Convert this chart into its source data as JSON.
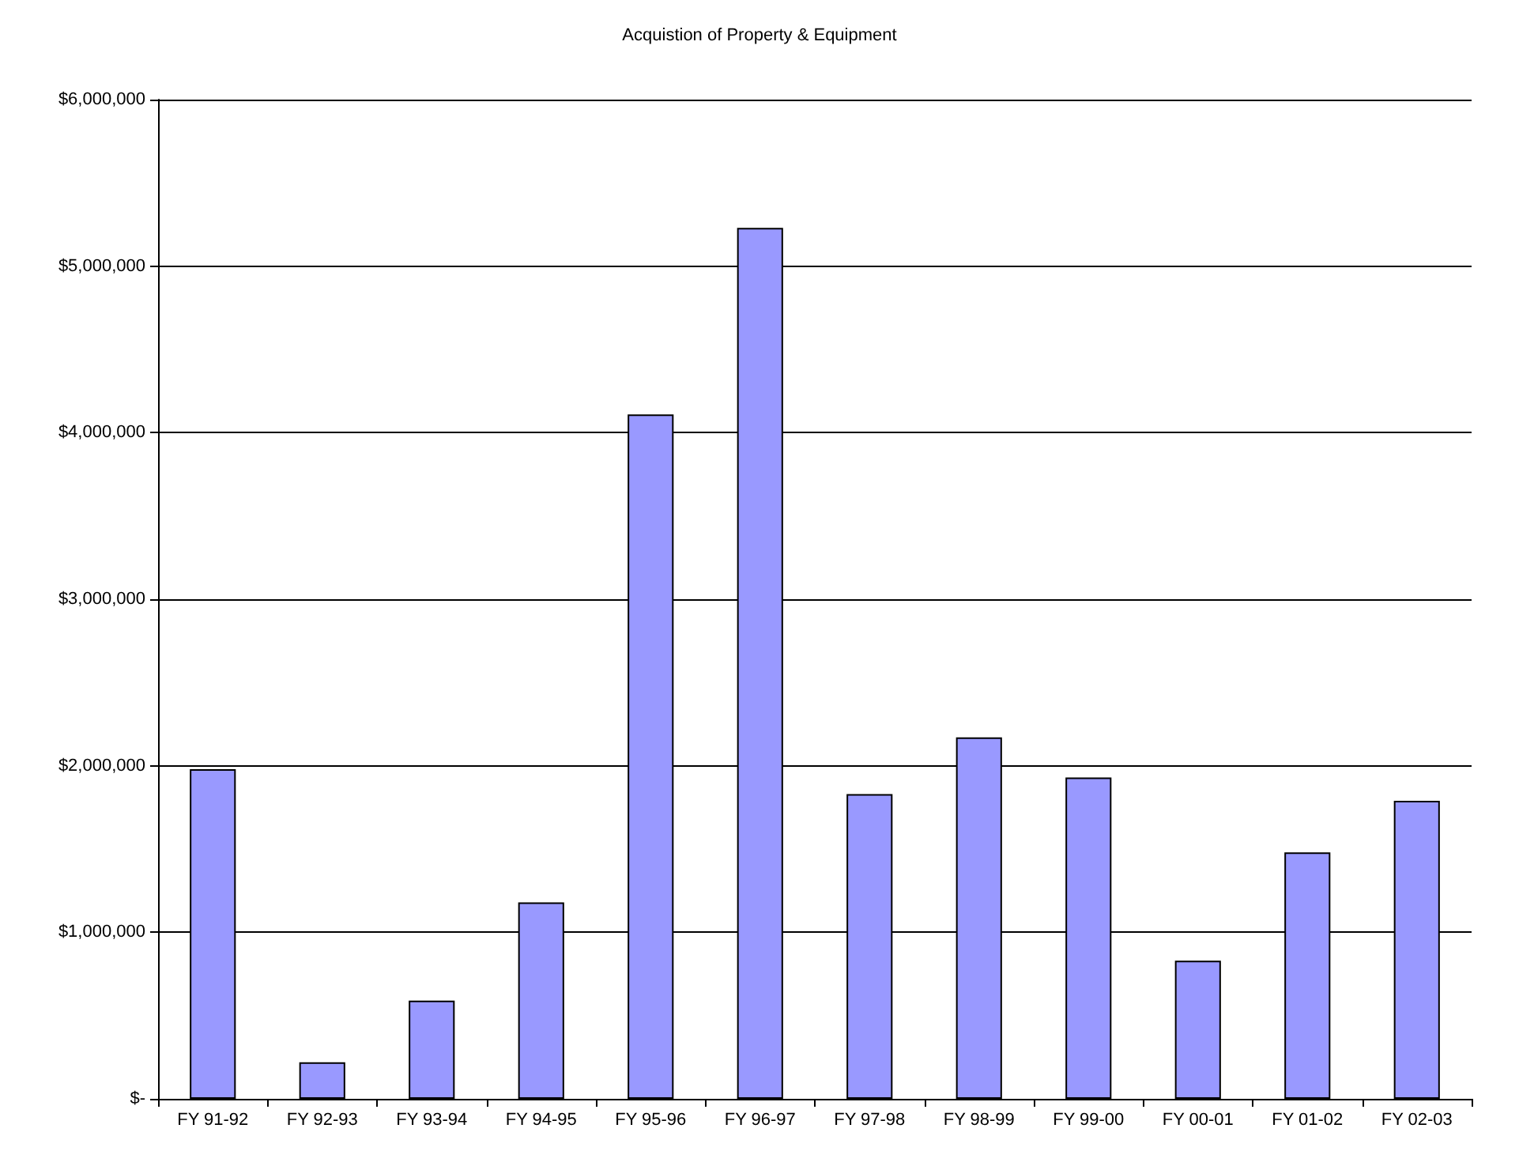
{
  "chart_data": {
    "type": "bar",
    "title": "Acquistion of Property & Equipment",
    "categories": [
      "FY 91-92",
      "FY 92-93",
      "FY 93-94",
      "FY 94-95",
      "FY 95-96",
      "FY 96-97",
      "FY 97-98",
      "FY 98-99",
      "FY 99-00",
      "FY 00-01",
      "FY 01-02",
      "FY 02-03"
    ],
    "values": [
      1980000,
      220000,
      590000,
      1180000,
      4110000,
      5230000,
      1830000,
      2170000,
      1930000,
      830000,
      1480000,
      1790000
    ],
    "color": "#9999ff",
    "ylim": [
      0,
      6000000
    ],
    "yticks": [
      {
        "value": 0,
        "label": "$-"
      },
      {
        "value": 1000000,
        "label": "$1,000,000"
      },
      {
        "value": 2000000,
        "label": "$2,000,000"
      },
      {
        "value": 3000000,
        "label": "$3,000,000"
      },
      {
        "value": 4000000,
        "label": "$4,000,000"
      },
      {
        "value": 5000000,
        "label": "$5,000,000"
      },
      {
        "value": 6000000,
        "label": "$6,000,000"
      }
    ],
    "grid": "y"
  }
}
